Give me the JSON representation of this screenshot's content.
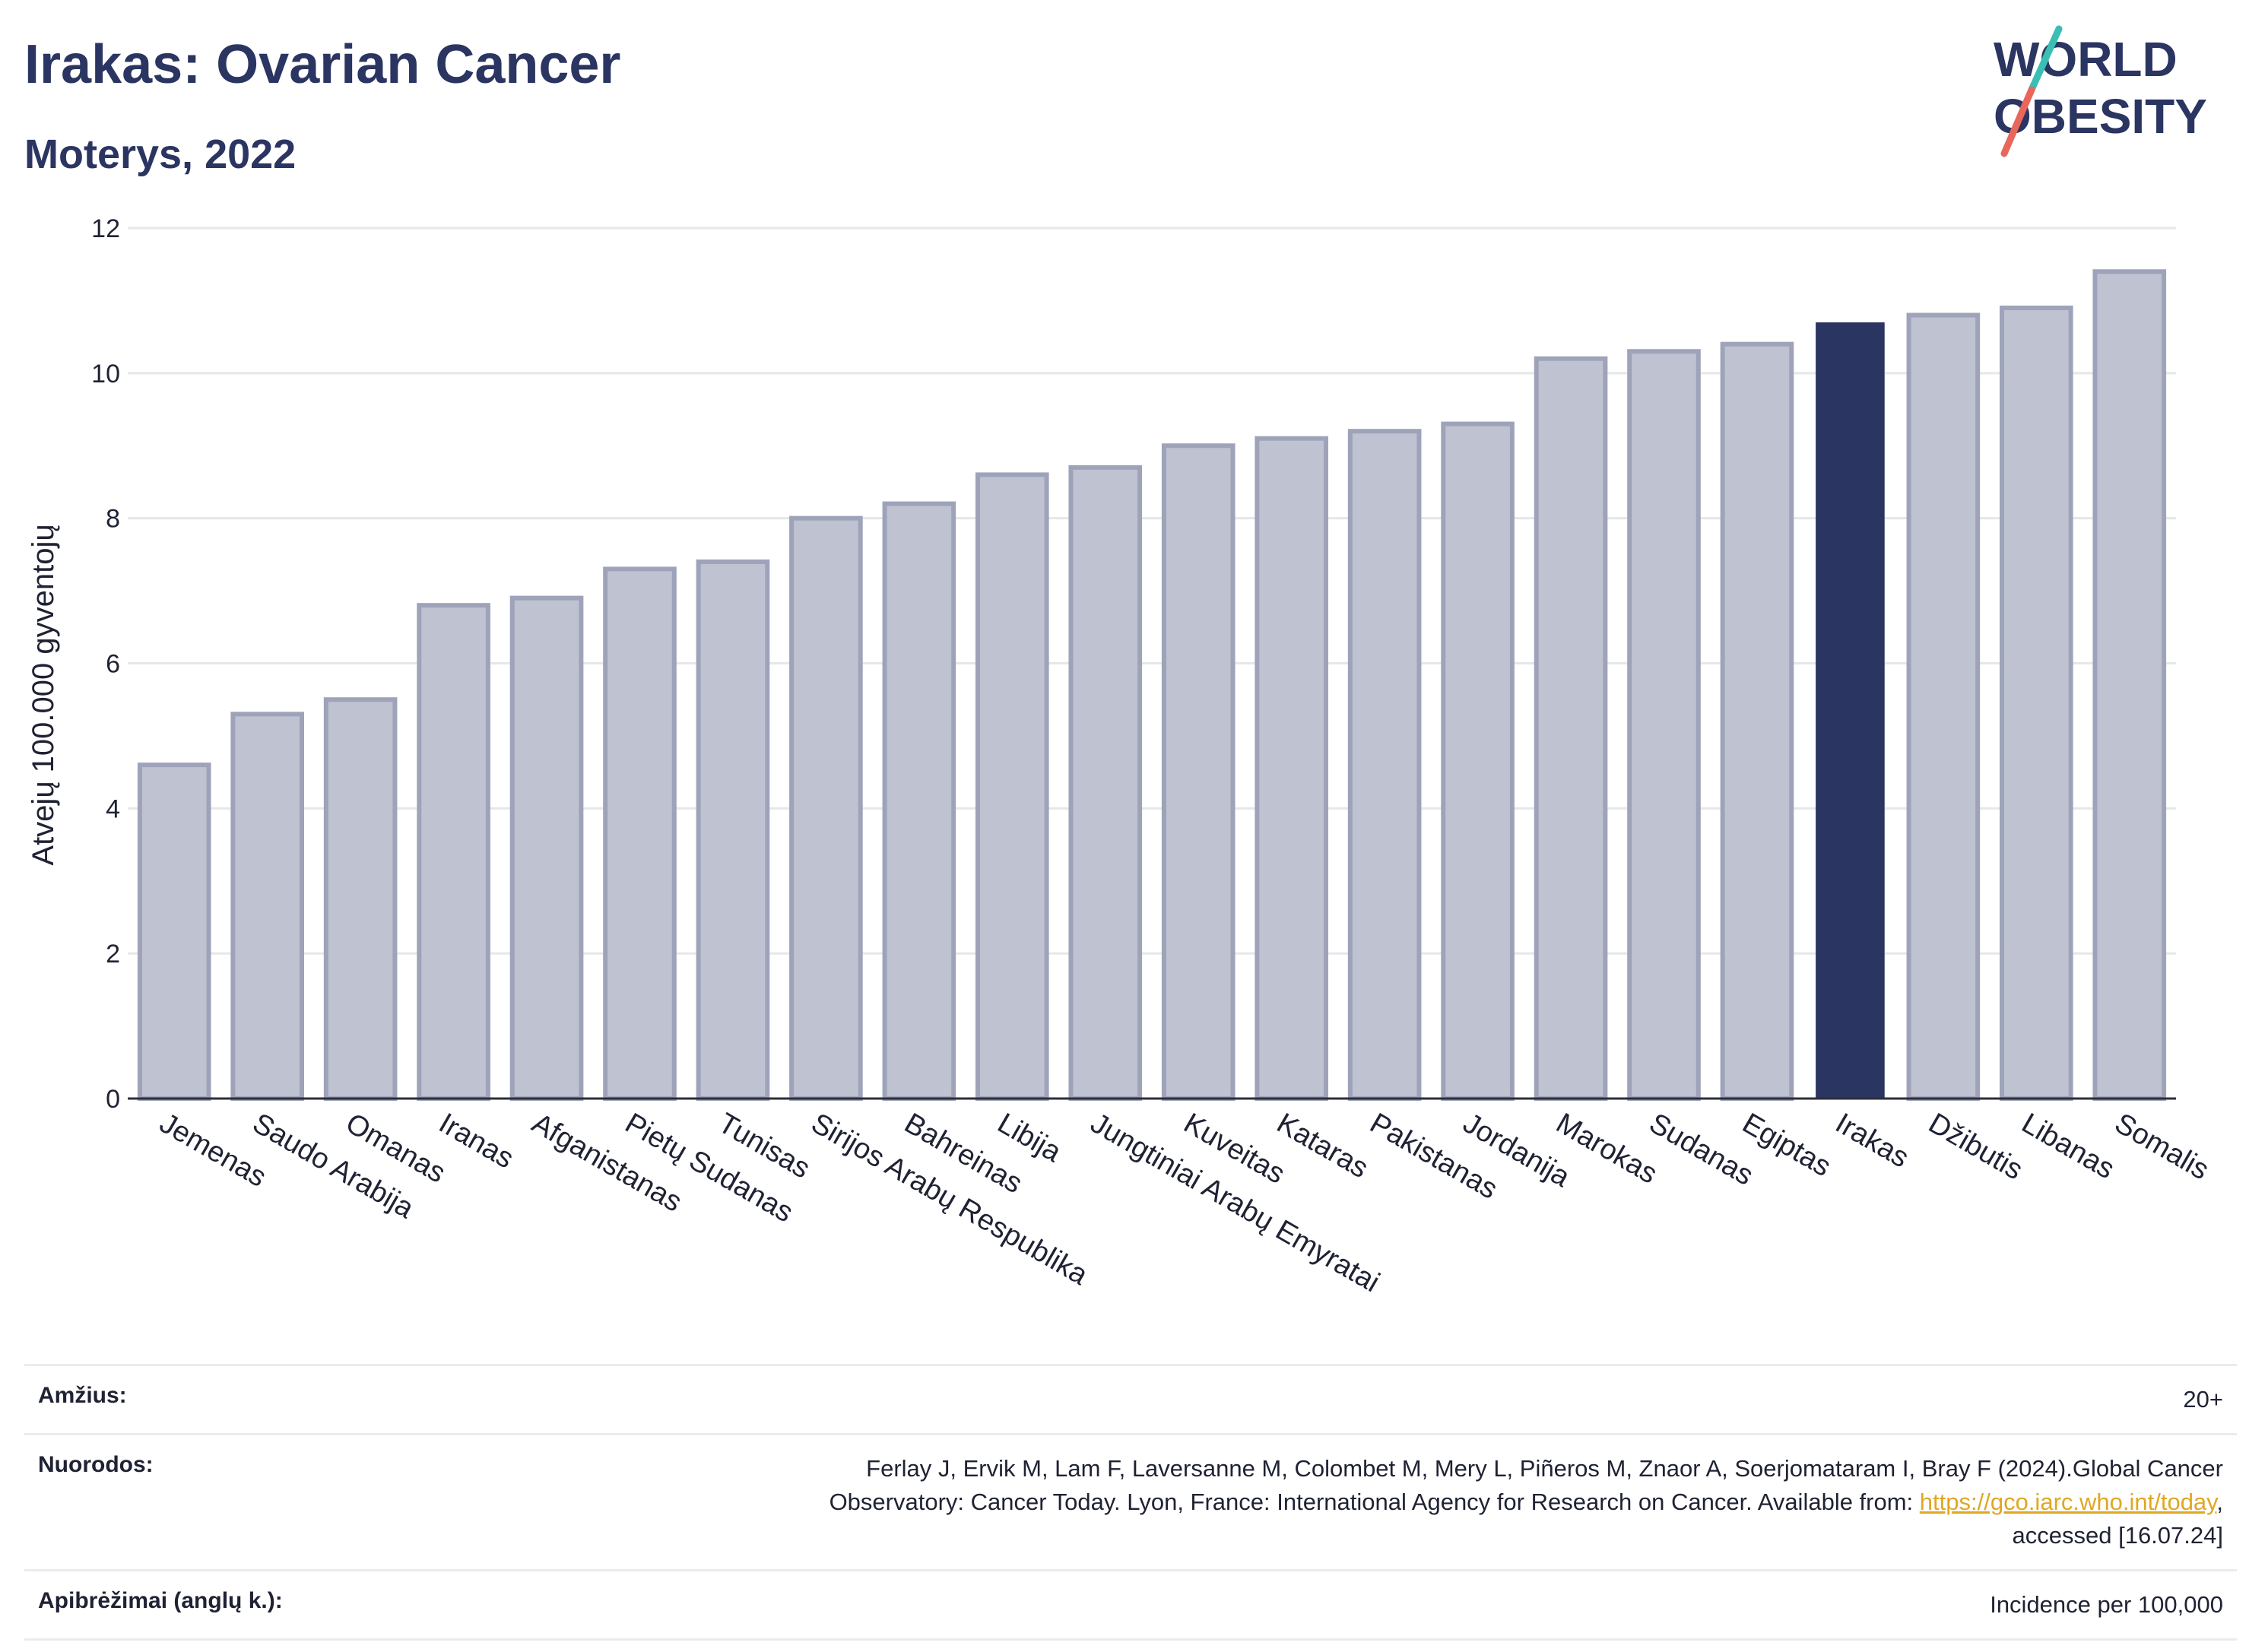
{
  "header": {
    "title": "Irakas: Ovarian Cancer",
    "subtitle": "Moterys, 2022"
  },
  "logo": {
    "line1": "WORLD",
    "line2": "OBESITY",
    "colors": {
      "text": "#2b3561",
      "stroke_teal": "#3bbfb4",
      "stroke_red": "#e8675a"
    }
  },
  "chart_data": {
    "type": "bar",
    "ylabel": "Atvejų 100.000 gyventojų",
    "xlabel": "",
    "ylim": [
      0,
      12
    ],
    "yticks": [
      0,
      2,
      4,
      6,
      8,
      10,
      12
    ],
    "grid": true,
    "highlight": "Irakas",
    "colors": {
      "bar": "#bfc2d0",
      "bar_edge": "#9ea3ba",
      "highlight": "#2b3561",
      "grid": "#e6e7ea",
      "axis": "#2b2e3a"
    },
    "categories": [
      "Jemenas",
      "Saudo Arabija",
      "Omanas",
      "Iranas",
      "Afganistanas",
      "Pietų Sudanas",
      "Tunisas",
      "Sirijos Arabų Respublika",
      "Bahreinas",
      "Libija",
      "Jungtiniai Arabų Emyratai",
      "Kuveitas",
      "Kataras",
      "Pakistanas",
      "Jordanija",
      "Marokas",
      "Sudanas",
      "Egiptas",
      "Irakas",
      "Džibutis",
      "Libanas",
      "Somalis"
    ],
    "values": [
      4.6,
      5.3,
      5.5,
      6.8,
      6.9,
      7.3,
      7.4,
      8.0,
      8.2,
      8.6,
      8.7,
      9.0,
      9.1,
      9.2,
      9.3,
      10.2,
      10.3,
      10.4,
      10.7,
      10.8,
      10.9,
      11.4
    ]
  },
  "meta": {
    "age_label": "Amžius:",
    "age_value": "20+",
    "refs_label": "Nuorodos:",
    "refs_text_1": "Ferlay J, Ervik M, Lam F, Laversanne M, Colombet M, Mery L, Piñeros M, Znaor A, Soerjomataram I, Bray F (2024).Global Cancer",
    "refs_text_2": "Observatory: Cancer Today. Lyon, France: International Agency for Research on Cancer. Available from: ",
    "refs_link": "https://gco.iarc.who.int/today",
    "refs_text_3": ",",
    "refs_text_4": "accessed [16.07.24]",
    "def_label": "Apibrėžimai (anglų k.):",
    "def_value": "Incidence per 100,000"
  }
}
